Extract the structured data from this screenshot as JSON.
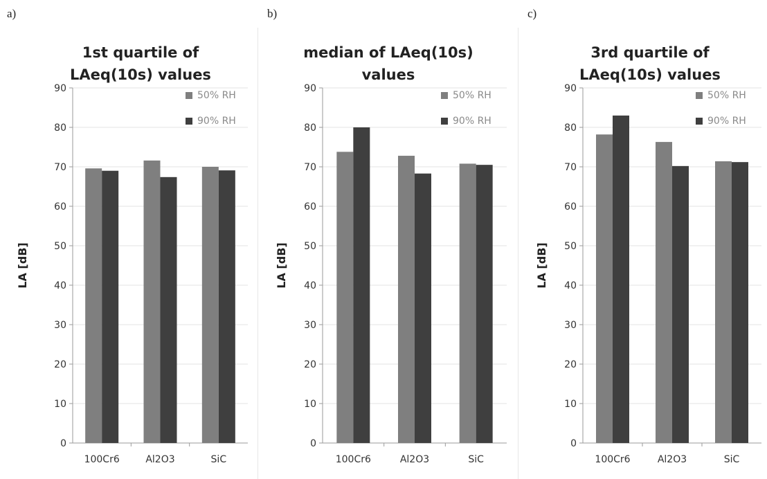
{
  "chart_data": [
    {
      "type": "bar",
      "panel_label": "a)",
      "title_lines": [
        "1st quartile of",
        "LAeq(10s) values"
      ],
      "ylabel": "LA [dB]",
      "xlabel": "",
      "ylim": [
        0,
        90
      ],
      "yticks": [
        "0",
        "10",
        "20",
        "30",
        "40",
        "50",
        "60",
        "70",
        "80",
        "90"
      ],
      "categories": [
        "100Cr6",
        "Al2O3",
        "SiC"
      ],
      "series": [
        {
          "name": "50% RH",
          "color": "#7f7f7f",
          "values": [
            69.6,
            71.6,
            70.0
          ]
        },
        {
          "name": "90% RH",
          "color": "#3f3f3f",
          "values": [
            69.0,
            67.4,
            69.1
          ]
        }
      ],
      "grid": true,
      "legend_position": "top-right"
    },
    {
      "type": "bar",
      "panel_label": "b)",
      "title_lines": [
        "median of LAeq(10s)",
        "values"
      ],
      "ylabel": "LA [dB]",
      "xlabel": "",
      "ylim": [
        0,
        90
      ],
      "yticks": [
        "0",
        "10",
        "20",
        "30",
        "40",
        "50",
        "60",
        "70",
        "80",
        "90"
      ],
      "categories": [
        "100Cr6",
        "Al2O3",
        "SiC"
      ],
      "series": [
        {
          "name": "50% RH",
          "color": "#7f7f7f",
          "values": [
            73.8,
            72.8,
            70.8
          ]
        },
        {
          "name": "90% RH",
          "color": "#3f3f3f",
          "values": [
            80.0,
            68.3,
            70.5
          ]
        }
      ],
      "grid": true,
      "legend_position": "top-right"
    },
    {
      "type": "bar",
      "panel_label": "c)",
      "title_lines": [
        "3rd quartile of",
        "LAeq(10s) values"
      ],
      "ylabel": "LA [dB]",
      "xlabel": "",
      "ylim": [
        0,
        90
      ],
      "yticks": [
        "0",
        "10",
        "20",
        "30",
        "40",
        "50",
        "60",
        "70",
        "80",
        "90"
      ],
      "categories": [
        "100Cr6",
        "Al2O3",
        "SiC"
      ],
      "series": [
        {
          "name": "50% RH",
          "color": "#7f7f7f",
          "values": [
            78.2,
            76.3,
            71.4
          ]
        },
        {
          "name": "90% RH",
          "color": "#3f3f3f",
          "values": [
            83.0,
            70.2,
            71.2
          ]
        }
      ],
      "grid": true,
      "legend_position": "top-right"
    }
  ]
}
